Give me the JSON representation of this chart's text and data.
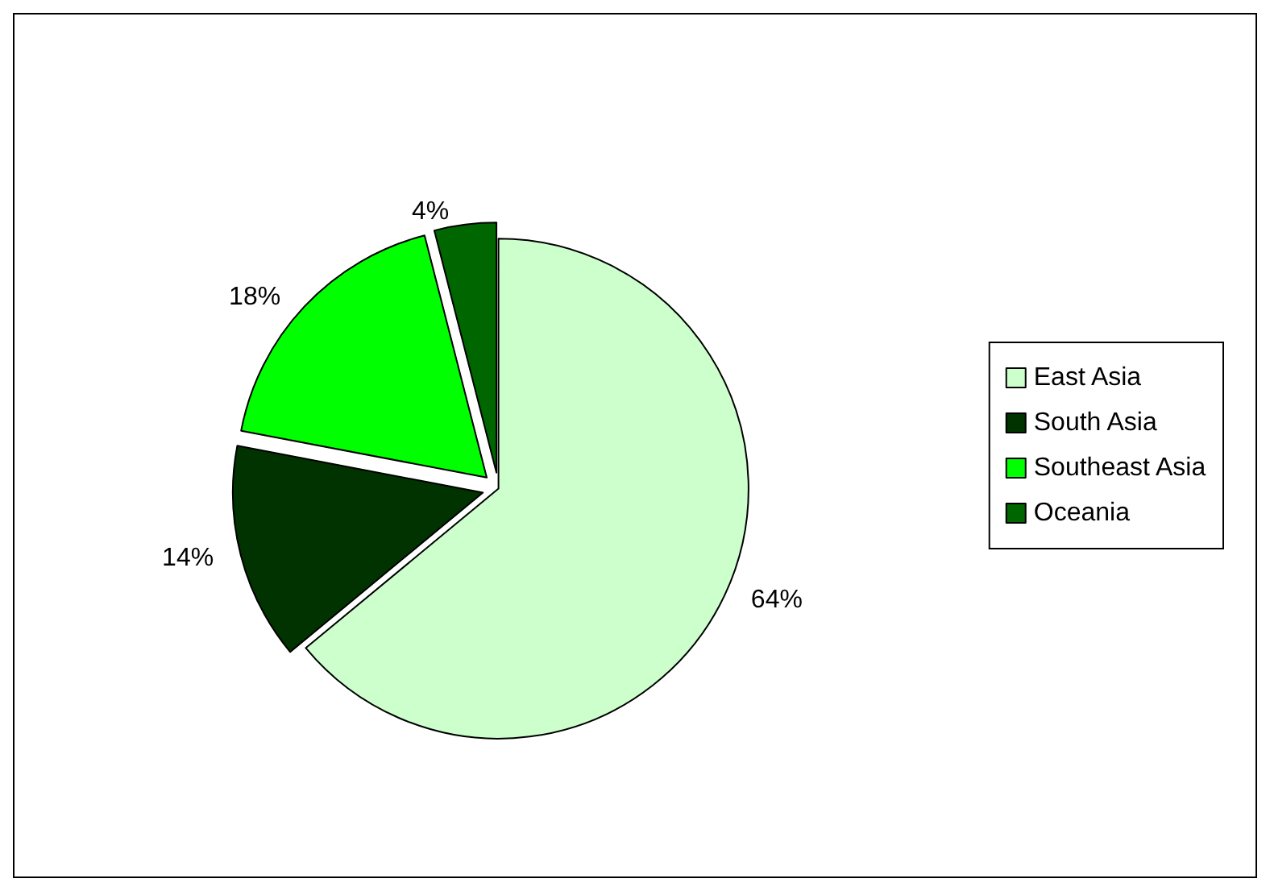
{
  "chart_data": {
    "type": "pie",
    "categories": [
      "East Asia",
      "South Asia",
      "Southeast Asia",
      "Oceania"
    ],
    "values": [
      64,
      14,
      18,
      4
    ],
    "colors": [
      "#ccffcc",
      "#003300",
      "#00ff00",
      "#006600"
    ],
    "value_labels": [
      "64%",
      "14%",
      "18%",
      "4%"
    ],
    "legend": "right"
  }
}
